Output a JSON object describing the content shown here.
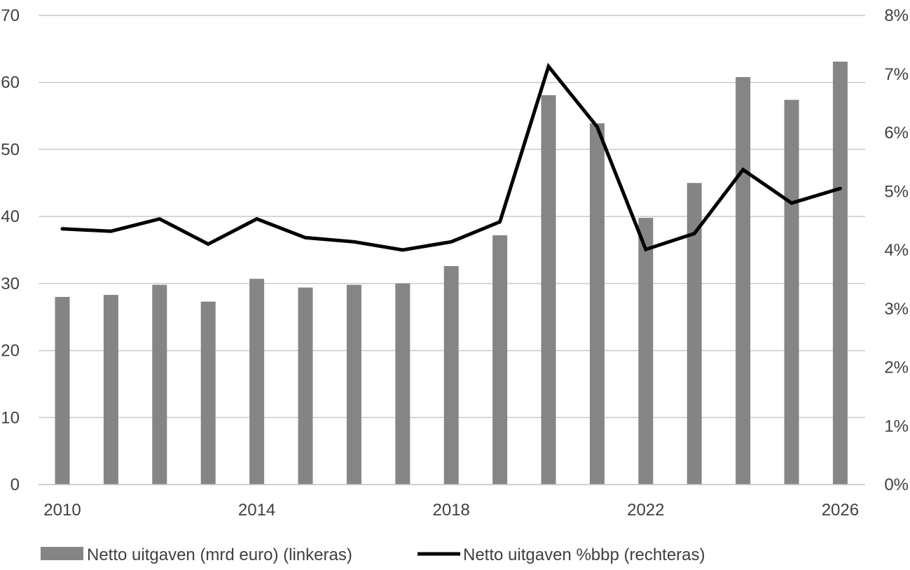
{
  "chart_data": {
    "type": "bar",
    "x": [
      2010,
      2011,
      2012,
      2013,
      2014,
      2015,
      2016,
      2017,
      2018,
      2019,
      2020,
      2021,
      2022,
      2023,
      2024,
      2025,
      2026
    ],
    "x_tick_labels": [
      "2010",
      "2014",
      "2018",
      "2022",
      "2026"
    ],
    "y_left": {
      "ticks": [
        "0",
        "10",
        "20",
        "30",
        "40",
        "50",
        "60",
        "70"
      ],
      "ylim": [
        0,
        70
      ]
    },
    "y_right": {
      "ticks": [
        "0%",
        "1%",
        "2%",
        "3%",
        "4%",
        "5%",
        "6%",
        "7%",
        "8%"
      ],
      "ylim": [
        0,
        8
      ]
    },
    "grid": true,
    "legend_position": "bottom",
    "series": [
      {
        "name": "Netto uitgaven (mrd euro) (linkeras)",
        "type": "bar",
        "axis": "left",
        "color": "#858585",
        "values": [
          28.0,
          28.3,
          29.8,
          27.3,
          30.7,
          29.4,
          29.8,
          30.0,
          32.6,
          37.2,
          58.1,
          53.9,
          39.8,
          45.0,
          60.8,
          57.4,
          63.1
        ]
      },
      {
        "name": "Netto uitgaven %bbp (rechteras)",
        "type": "line",
        "axis": "right",
        "color": "#000000",
        "values": [
          4.36,
          4.32,
          4.53,
          4.1,
          4.53,
          4.21,
          4.14,
          4.0,
          4.14,
          4.48,
          7.13,
          6.1,
          4.01,
          4.28,
          5.37,
          4.8,
          5.05
        ]
      }
    ]
  }
}
